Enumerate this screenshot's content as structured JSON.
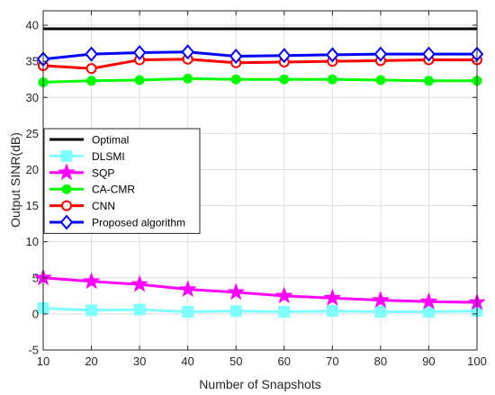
{
  "chart_data": {
    "type": "line",
    "xlabel": "Number of Snapshots",
    "ylabel": "Output SINR(dB)",
    "xlim": [
      10,
      100
    ],
    "ylim": [
      -5,
      42
    ],
    "xticks": [
      10,
      20,
      30,
      40,
      50,
      60,
      70,
      80,
      90,
      100
    ],
    "yticks": [
      -5,
      0,
      5,
      10,
      15,
      20,
      25,
      30,
      35,
      40
    ],
    "grid": true,
    "legend_position": "middle-left",
    "x": [
      10,
      20,
      30,
      40,
      50,
      60,
      70,
      80,
      90,
      100
    ],
    "series": [
      {
        "name": "Optimal",
        "color": "#000000",
        "marker": "none",
        "values": [
          39.5,
          39.5,
          39.5,
          39.5,
          39.5,
          39.5,
          39.5,
          39.5,
          39.5,
          39.5
        ]
      },
      {
        "name": "DLSMI",
        "color": "#80FFFF",
        "marker": "square",
        "values": [
          0.8,
          0.5,
          0.6,
          0.3,
          0.4,
          0.3,
          0.4,
          0.3,
          0.3,
          0.4
        ]
      },
      {
        "name": "SQP",
        "color": "#FF00FF",
        "marker": "star",
        "values": [
          5.0,
          4.5,
          4.1,
          3.4,
          3.0,
          2.5,
          2.2,
          1.9,
          1.7,
          1.6
        ]
      },
      {
        "name": "CA-CMR",
        "color": "#00FF00",
        "marker": "circle-filled",
        "values": [
          32.1,
          32.3,
          32.4,
          32.6,
          32.5,
          32.5,
          32.5,
          32.4,
          32.3,
          32.3
        ]
      },
      {
        "name": "CNN",
        "color": "#FF0000",
        "marker": "circle-open",
        "values": [
          34.4,
          34.0,
          35.2,
          35.3,
          34.8,
          34.9,
          35.0,
          35.1,
          35.2,
          35.2
        ]
      },
      {
        "name": "Proposed algorithm",
        "color": "#0000FF",
        "marker": "diamond",
        "values": [
          35.3,
          36.0,
          36.2,
          36.3,
          35.7,
          35.8,
          35.9,
          36.0,
          36.0,
          36.0
        ]
      }
    ]
  }
}
